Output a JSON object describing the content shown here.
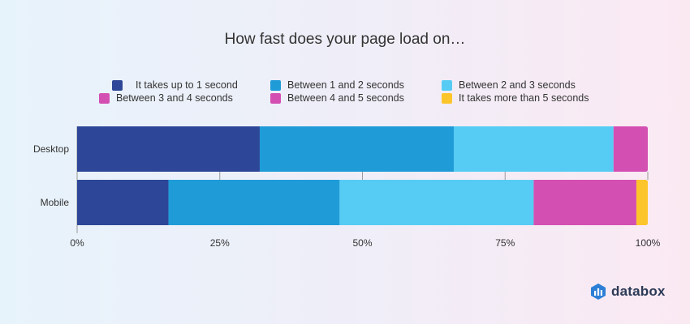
{
  "chart_data": {
    "type": "bar",
    "orientation": "horizontal",
    "stacked": true,
    "title": "How fast does your page load on…",
    "categories": [
      "Desktop",
      "Mobile"
    ],
    "series": [
      {
        "name": "It takes up to 1 second",
        "color": "#2e4698",
        "values": [
          32,
          16
        ]
      },
      {
        "name": "Between 1 and 2 seconds",
        "color": "#1f9bd8",
        "values": [
          34,
          30
        ]
      },
      {
        "name": "Between 2 and 3 seconds",
        "color": "#56ccf4",
        "values": [
          28,
          34
        ]
      },
      {
        "name": "Between 3 and 4 seconds",
        "color": "#d44fb2",
        "values": [
          0,
          0
        ]
      },
      {
        "name": "Between 4 and 5 seconds",
        "color": "#d44fb2",
        "values": [
          6,
          18
        ]
      },
      {
        "name": "It takes more than 5 seconds",
        "color": "#fdc52c",
        "values": [
          0,
          2
        ]
      }
    ],
    "xticks": [
      "0%",
      "25%",
      "50%",
      "75%",
      "100%"
    ],
    "xlim": [
      0,
      100
    ],
    "legend_position": "top"
  },
  "brand": {
    "name": "databox",
    "icon": "databox-logo-icon",
    "color": "#2c3a57",
    "icon_color": "#2d7fd6"
  }
}
